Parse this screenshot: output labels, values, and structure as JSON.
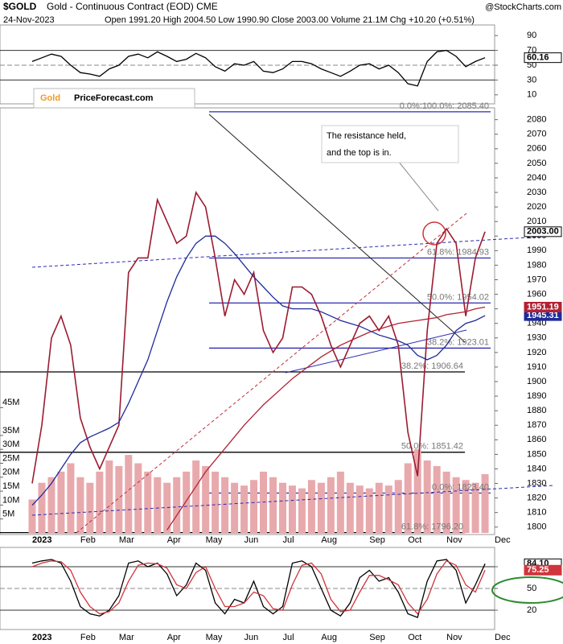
{
  "header": {
    "symbol": "$GOLD",
    "name": "Gold - Continuous Contract (EOD) CME",
    "date": "24-Nov-2023",
    "quote": "Open 1991.20  High 2004.50  Low 1990.90  Close 2003.00  Volume 21.1M  Chg +10.20 (+0.51%)",
    "credit": "@StockCharts.com"
  },
  "logo": {
    "part1": "Gold",
    "part2": "PriceForecast.com"
  },
  "chart_data": [
    {
      "type": "line",
      "ylim": [
        0,
        100
      ],
      "yticks": [
        90,
        70,
        50,
        30,
        10
      ],
      "ref_lines": [
        70,
        50,
        30
      ],
      "series": [
        {
          "name": "RSI",
          "color": "#000000",
          "values": [
            55,
            60,
            65,
            62,
            50,
            40,
            38,
            35,
            45,
            50,
            62,
            65,
            60,
            68,
            62,
            55,
            58,
            66,
            60,
            48,
            42,
            52,
            50,
            55,
            42,
            40,
            45,
            55,
            55,
            52,
            45,
            40,
            35,
            42,
            50,
            52,
            45,
            50,
            40,
            25,
            22,
            55,
            68,
            70,
            62,
            48,
            55,
            60.16,
            null
          ],
          "value_labels": [
            null,
            null,
            null,
            null,
            null,
            null,
            null,
            null,
            null,
            null,
            null,
            null,
            null,
            null,
            null,
            null,
            null,
            null,
            null,
            null,
            null,
            null,
            null,
            null,
            null,
            null,
            null,
            null,
            null,
            null,
            null,
            null,
            null,
            null,
            null,
            null,
            null,
            null,
            null,
            null,
            null,
            null,
            null,
            null,
            null,
            null,
            null,
            "60.16",
            null
          ]
        }
      ]
    },
    {
      "type": "line",
      "ylim": [
        1796,
        2087
      ],
      "yticks": [
        1800,
        1810,
        1820,
        1830,
        1840,
        1850,
        1860,
        1870,
        1880,
        1890,
        1900,
        1910,
        1920,
        1930,
        1940,
        1950,
        1960,
        1970,
        1980,
        1990,
        2000,
        2010,
        2020,
        2030,
        2040,
        2050,
        2060,
        2070,
        2080
      ],
      "y2lim": [
        0,
        50000000
      ],
      "y2ticks": [
        {
          "value": 5000000,
          "label": "5M"
        },
        {
          "value": 10000000,
          "label": "10M"
        },
        {
          "value": 15000000,
          "label": "15M"
        },
        {
          "value": 20000000,
          "label": "20M"
        },
        {
          "value": 25000000,
          "label": "25M"
        },
        {
          "value": 30000000,
          "label": "30M"
        },
        {
          "value": 35000000,
          "label": "35M"
        },
        {
          "value": 45000000,
          "label": "45M"
        }
      ],
      "categories": [
        "2023",
        null,
        null,
        null,
        null,
        "Feb",
        null,
        null,
        null,
        "Mar",
        null,
        null,
        null,
        null,
        "Apr",
        null,
        null,
        null,
        "May",
        null,
        null,
        null,
        "Jun",
        null,
        null,
        null,
        "Jul",
        null,
        null,
        null,
        "Aug",
        null,
        null,
        null,
        null,
        "Sep",
        null,
        null,
        null,
        "Oct",
        null,
        null,
        null,
        "Nov",
        null,
        null,
        null,
        null,
        "Dec"
      ],
      "series": [
        {
          "name": "Volume",
          "type": "bar",
          "axis": "y2",
          "color": "#e8a9ad",
          "values": [
            12000000,
            18000000,
            20000000,
            22000000,
            25000000,
            20000000,
            18000000,
            22000000,
            26000000,
            24000000,
            28000000,
            25000000,
            22000000,
            20000000,
            18000000,
            20000000,
            22000000,
            26000000,
            24000000,
            22000000,
            20000000,
            18000000,
            17000000,
            19000000,
            22000000,
            20000000,
            18000000,
            17000000,
            16000000,
            19000000,
            18000000,
            20000000,
            22000000,
            18000000,
            17000000,
            16000000,
            18000000,
            17000000,
            19000000,
            25000000,
            30000000,
            26000000,
            24000000,
            22000000,
            20000000,
            19000000,
            18000000,
            21100000,
            null
          ]
        },
        {
          "name": "Gold",
          "type": "line",
          "color": "#9b1b30",
          "values": [
            1830,
            1870,
            1930,
            1945,
            1925,
            1875,
            1855,
            1840,
            1855,
            1870,
            1975,
            1985,
            1985,
            2025,
            2010,
            1995,
            2000,
            2030,
            2020,
            1985,
            1945,
            1970,
            1960,
            1975,
            1935,
            1920,
            1930,
            1965,
            1965,
            1960,
            1945,
            1925,
            1910,
            1925,
            1940,
            1945,
            1935,
            1945,
            1925,
            1865,
            1835,
            1935,
            1995,
            2005,
            1995,
            1945,
            1985,
            2003,
            null
          ],
          "value_labels": [
            null,
            null,
            null,
            null,
            null,
            null,
            null,
            null,
            null,
            null,
            null,
            null,
            null,
            null,
            null,
            null,
            null,
            null,
            null,
            null,
            null,
            null,
            null,
            null,
            null,
            null,
            null,
            null,
            null,
            null,
            null,
            null,
            null,
            null,
            null,
            null,
            null,
            null,
            null,
            null,
            null,
            null,
            null,
            null,
            null,
            null,
            null,
            "2003.00",
            null
          ]
        },
        {
          "name": "MA 50",
          "type": "line",
          "color": "#1f2a9a",
          "values": [
            1815,
            1822,
            1830,
            1840,
            1850,
            1858,
            1862,
            1865,
            1868,
            1872,
            1885,
            1900,
            1915,
            1935,
            1955,
            1972,
            1985,
            1995,
            2000,
            2000,
            1995,
            1988,
            1980,
            1972,
            1965,
            1958,
            1952,
            1950,
            1950,
            1950,
            1948,
            1945,
            1942,
            1940,
            1938,
            1935,
            1932,
            1930,
            1928,
            1925,
            1918,
            1915,
            1918,
            1925,
            1935,
            1940,
            1942,
            1945.31,
            null
          ],
          "value_labels": [
            null,
            null,
            null,
            null,
            null,
            null,
            null,
            null,
            null,
            null,
            null,
            null,
            null,
            null,
            null,
            null,
            null,
            null,
            null,
            null,
            null,
            null,
            null,
            null,
            null,
            null,
            null,
            null,
            null,
            null,
            null,
            null,
            null,
            null,
            null,
            null,
            null,
            null,
            null,
            null,
            null,
            null,
            null,
            null,
            null,
            null,
            null,
            "1945.31",
            null
          ]
        },
        {
          "name": "MA 200",
          "type": "line",
          "color": "#b22234",
          "values": [
            null,
            null,
            null,
            null,
            null,
            null,
            null,
            null,
            null,
            null,
            null,
            null,
            null,
            null,
            1798,
            1808,
            1818,
            1828,
            1838,
            1846,
            1854,
            1862,
            1870,
            1877,
            1884,
            1890,
            1896,
            1902,
            1907,
            1912,
            1917,
            1921,
            1925,
            1928,
            1931,
            1934,
            1936,
            1938,
            1940,
            1941,
            1942,
            1943,
            1944,
            1946,
            1947,
            1948,
            1950,
            1951.19,
            null
          ],
          "value_labels": [
            null,
            null,
            null,
            null,
            null,
            null,
            null,
            null,
            null,
            null,
            null,
            null,
            null,
            null,
            null,
            null,
            null,
            null,
            null,
            null,
            null,
            null,
            null,
            null,
            null,
            null,
            null,
            null,
            null,
            null,
            null,
            null,
            null,
            null,
            null,
            null,
            null,
            null,
            null,
            null,
            null,
            null,
            null,
            null,
            null,
            null,
            null,
            "1951.19",
            null
          ]
        }
      ],
      "levels": [
        {
          "value": 2085.4,
          "label": "0.0%:100.0%: 2085.40",
          "color": "#2b2bb0"
        },
        {
          "value": 1984.93,
          "label": "61.8%: 1984.93",
          "color": "#2b2bb0"
        },
        {
          "value": 1954.02,
          "label": "50.0%: 1954.02",
          "color": "#2b2bb0"
        },
        {
          "value": 1923.01,
          "label": "38.2%: 1923.01",
          "color": "#2b2bb0"
        },
        {
          "value": 1823.4,
          "label": "0.0%: 1823.40",
          "color": "#2b2bb0"
        },
        {
          "value": 1906.64,
          "label": "38.2%: 1906.64",
          "color": "#000000"
        },
        {
          "value": 1851.42,
          "label": "50.0%: 1851.42",
          "color": "#000000"
        },
        {
          "value": 1796.2,
          "label": "61.8%: 1796.20",
          "color": "#000000"
        }
      ],
      "annotations": [
        "The resistance held,",
        "and the top is in."
      ]
    },
    {
      "type": "line",
      "ylim": [
        0,
        100
      ],
      "yticks": [
        80,
        50,
        20
      ],
      "ref_lines": [
        80,
        50,
        20
      ],
      "series": [
        {
          "name": "%K",
          "color": "#000000",
          "values": [
            85,
            88,
            90,
            85,
            60,
            25,
            15,
            12,
            20,
            40,
            85,
            88,
            80,
            85,
            70,
            40,
            55,
            85,
            75,
            30,
            15,
            35,
            30,
            60,
            25,
            15,
            25,
            85,
            88,
            80,
            50,
            20,
            12,
            30,
            65,
            75,
            60,
            65,
            45,
            15,
            10,
            60,
            88,
            90,
            75,
            30,
            55,
            84.1,
            null
          ],
          "value_labels": [
            null,
            null,
            null,
            null,
            null,
            null,
            null,
            null,
            null,
            null,
            null,
            null,
            null,
            null,
            null,
            null,
            null,
            null,
            null,
            null,
            null,
            null,
            null,
            null,
            null,
            null,
            null,
            null,
            null,
            null,
            null,
            null,
            null,
            null,
            null,
            null,
            null,
            null,
            null,
            null,
            null,
            null,
            null,
            null,
            null,
            null,
            null,
            "84.10",
            null
          ]
        },
        {
          "name": "%D",
          "color": "#d0343c",
          "values": [
            80,
            85,
            88,
            87,
            75,
            45,
            25,
            15,
            18,
            30,
            60,
            82,
            85,
            84,
            78,
            55,
            50,
            72,
            80,
            50,
            25,
            25,
            30,
            45,
            40,
            22,
            20,
            55,
            82,
            85,
            70,
            35,
            18,
            20,
            45,
            68,
            68,
            62,
            55,
            30,
            15,
            35,
            70,
            88,
            82,
            55,
            45,
            75.25,
            null
          ],
          "value_labels": [
            null,
            null,
            null,
            null,
            null,
            null,
            null,
            null,
            null,
            null,
            null,
            null,
            null,
            null,
            null,
            null,
            null,
            null,
            null,
            null,
            null,
            null,
            null,
            null,
            null,
            null,
            null,
            null,
            null,
            null,
            null,
            null,
            null,
            null,
            null,
            null,
            null,
            null,
            null,
            null,
            null,
            null,
            null,
            null,
            null,
            null,
            null,
            "75.25",
            null
          ]
        }
      ]
    }
  ]
}
